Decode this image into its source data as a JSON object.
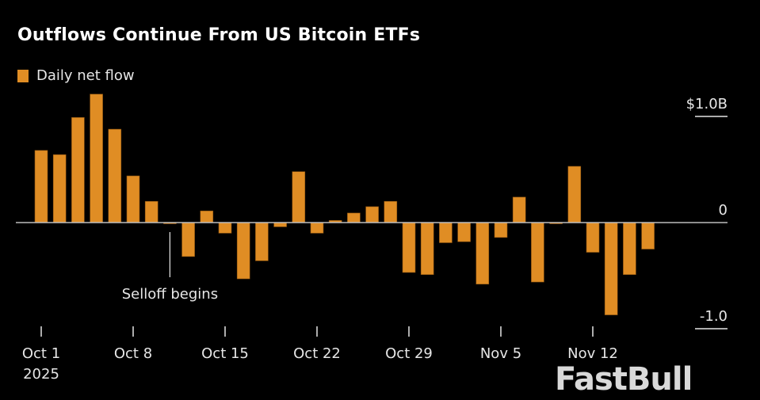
{
  "chart_data": {
    "type": "bar",
    "title": "Outflows Continue From US Bitcoin ETFs",
    "legend": {
      "label": "Daily net flow",
      "placement": "top-left"
    },
    "color": "#e08d24",
    "ylabel": "",
    "ylim": [
      -1.15,
      1.25
    ],
    "y_ticks": [
      {
        "value": 1.0,
        "label": "$1.0B"
      },
      {
        "value": 0,
        "label": "0"
      },
      {
        "value": -1.0,
        "label": "-1.0"
      }
    ],
    "x_ticks": [
      {
        "date": "Oct 1",
        "label": "Oct 1",
        "sublabel": "2025"
      },
      {
        "date": "Oct 8",
        "label": "Oct 8"
      },
      {
        "date": "Oct 15",
        "label": "Oct 15"
      },
      {
        "date": "Oct 22",
        "label": "Oct 22"
      },
      {
        "date": "Oct 29",
        "label": "Oct 29"
      },
      {
        "date": "Nov 5",
        "label": "Nov 5"
      },
      {
        "date": "Nov 12",
        "label": "Nov 12"
      }
    ],
    "categories": [
      "Oct 1",
      "Oct 2",
      "Oct 3",
      "Oct 6",
      "Oct 7",
      "Oct 8",
      "Oct 9",
      "Oct 10",
      "Oct 13",
      "Oct 14",
      "Oct 15",
      "Oct 16",
      "Oct 17",
      "Oct 20",
      "Oct 21",
      "Oct 22",
      "Oct 23",
      "Oct 24",
      "Oct 27",
      "Oct 28",
      "Oct 29",
      "Oct 30",
      "Oct 31",
      "Nov 3",
      "Nov 4",
      "Nov 5",
      "Nov 6",
      "Nov 7",
      "Nov 10",
      "Nov 11",
      "Nov 12",
      "Nov 13",
      "Nov 14",
      "Nov 17"
    ],
    "values": [
      0.68,
      0.64,
      0.99,
      1.21,
      0.88,
      0.44,
      0.2,
      -0.01,
      -0.32,
      0.11,
      -0.1,
      -0.53,
      -0.36,
      -0.04,
      0.48,
      -0.1,
      0.02,
      0.09,
      0.15,
      0.2,
      -0.47,
      -0.49,
      -0.19,
      -0.18,
      -0.58,
      -0.14,
      0.24,
      -0.56,
      -0.01,
      0.53,
      -0.28,
      -0.87,
      -0.49,
      -0.25
    ],
    "annotations": [
      {
        "date": "Oct 10",
        "label": "Selloff begins"
      }
    ],
    "grid": false
  },
  "watermark": "FastBull"
}
